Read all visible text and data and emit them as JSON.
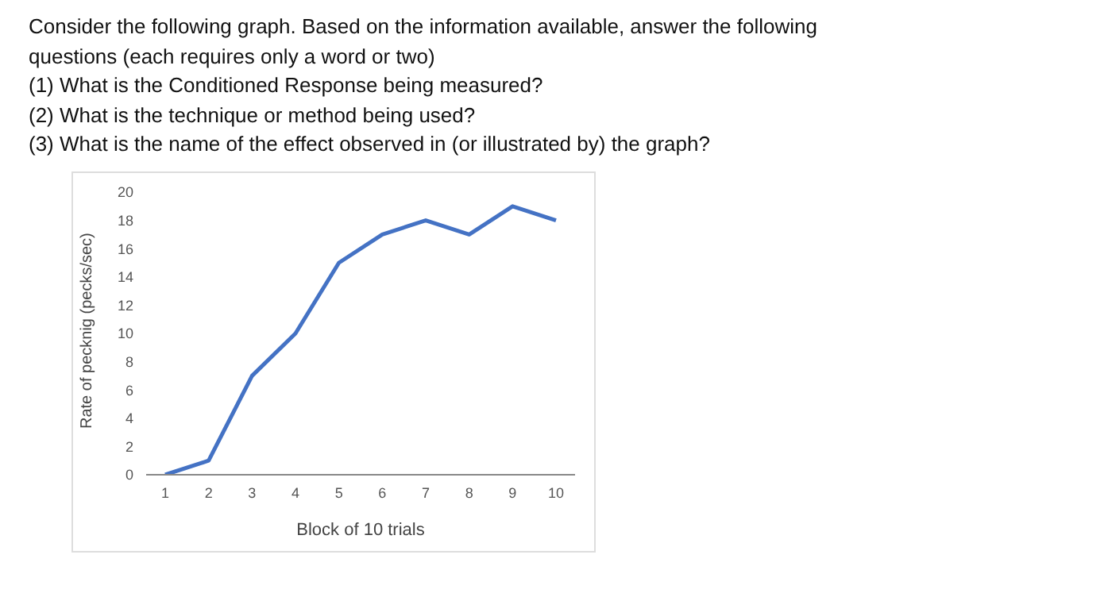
{
  "chart_data": {
    "type": "line",
    "annotations": [
      "Consider the following graph. Based on the information available, answer the following questions (each requires only a word or two)",
      "(1)  What is the Conditioned Response being measured?",
      "(2)  What is the technique or method being used?",
      "(3)  What is the name of the effect observed in (or illustrated by) the graph?"
    ],
    "xlabel": "Block of 10 trials",
    "ylabel": "Rate of pecknig (pecks/sec)",
    "categories": [
      "1",
      "2",
      "3",
      "4",
      "5",
      "6",
      "7",
      "8",
      "9",
      "10"
    ],
    "series": [
      {
        "color": "#4472c4",
        "values": [
          0,
          1,
          7,
          10,
          15,
          17,
          18,
          17,
          19,
          18
        ]
      }
    ],
    "ylim": [
      0,
      20
    ],
    "yticks": [
      0,
      2,
      4,
      6,
      8,
      10,
      12,
      14,
      16,
      18,
      20
    ],
    "grid": false,
    "legend": false,
    "marker": "none",
    "line_style": "solid"
  }
}
